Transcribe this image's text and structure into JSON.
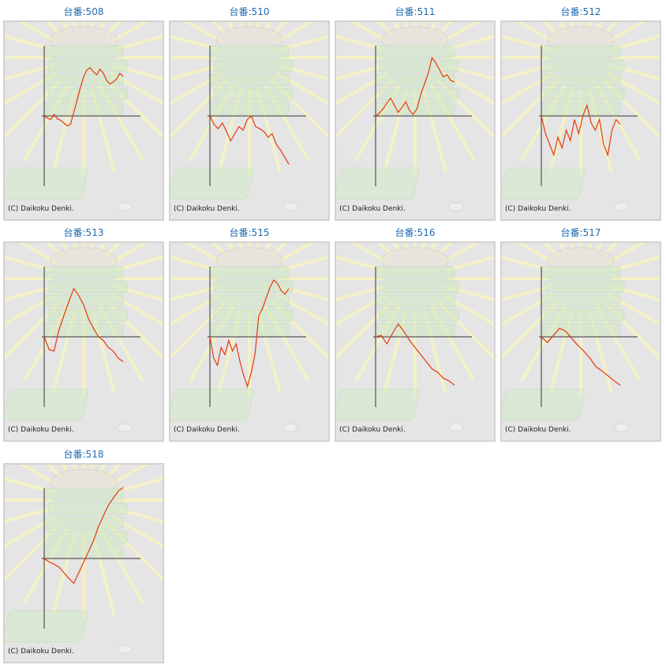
{
  "title_prefix": "台番:",
  "copyright": "(C) Daikoku Denki.",
  "colors": {
    "title": "#1f6bb0",
    "line": "#e8380d",
    "axis": "#333333",
    "panel": "#e5e5e5",
    "border": "#d2d2d2"
  },
  "charts": [
    {
      "title": "台番:508"
    },
    {
      "title": "台番:510"
    },
    {
      "title": "台番:511"
    },
    {
      "title": "台番:512"
    },
    {
      "title": "台番:513"
    },
    {
      "title": "台番:515"
    },
    {
      "title": "台番:516"
    },
    {
      "title": "台番:517"
    },
    {
      "title": "台番:518"
    }
  ],
  "chart_data": [
    {
      "type": "line",
      "title": "台番:508",
      "series": [
        {
          "values": [
            0,
            -3,
            -5,
            2,
            -4,
            -6,
            -10,
            -14,
            -12,
            5,
            22,
            40,
            55,
            65,
            68,
            62,
            58,
            66,
            60,
            50,
            45,
            48,
            52,
            60,
            56
          ]
        }
      ]
    },
    {
      "type": "line",
      "title": "台番:510",
      "series": [
        {
          "values": [
            0,
            -12,
            -18,
            -10,
            -22,
            -35,
            -25,
            -15,
            -20,
            -5,
            0,
            -15,
            -18,
            -22,
            -30,
            -25,
            -40,
            -48,
            -58,
            -68
          ]
        }
      ]
    },
    {
      "type": "line",
      "title": "台番:511",
      "series": [
        {
          "values": [
            0,
            4,
            10,
            18,
            25,
            15,
            5,
            12,
            20,
            8,
            2,
            10,
            30,
            45,
            60,
            82,
            75,
            65,
            55,
            58,
            50,
            48
          ]
        }
      ]
    },
    {
      "type": "line",
      "title": "台番:512",
      "series": [
        {
          "values": [
            0,
            -25,
            -40,
            -55,
            -30,
            -45,
            -20,
            -35,
            -5,
            -25,
            0,
            15,
            -10,
            -20,
            -5,
            -40,
            -55,
            -20,
            -5,
            -12
          ]
        }
      ]
    },
    {
      "type": "line",
      "title": "台番:513",
      "series": [
        {
          "values": [
            0,
            -18,
            -20,
            10,
            30,
            50,
            68,
            58,
            45,
            25,
            12,
            0,
            -5,
            -15,
            -20,
            -30,
            -35
          ]
        }
      ]
    },
    {
      "type": "line",
      "title": "台番:515",
      "series": [
        {
          "values": [
            0,
            -30,
            -40,
            -15,
            -25,
            -5,
            -20,
            -10,
            -35,
            -55,
            -70,
            -50,
            -25,
            30,
            40,
            55,
            70,
            80,
            75,
            65,
            60,
            68
          ]
        }
      ]
    },
    {
      "type": "line",
      "title": "台番:516",
      "series": [
        {
          "values": [
            0,
            2,
            -10,
            5,
            18,
            8,
            -5,
            -15,
            -25,
            -35,
            -45,
            -50,
            -58,
            -62,
            -68
          ]
        }
      ]
    },
    {
      "type": "line",
      "title": "台番:517",
      "series": [
        {
          "values": [
            0,
            -8,
            2,
            12,
            8,
            -2,
            -12,
            -20,
            -30,
            -42,
            -48,
            -55,
            -62,
            -68
          ]
        }
      ]
    },
    {
      "type": "line",
      "title": "台番:518",
      "series": [
        {
          "values": [
            0,
            -5,
            -8,
            -12,
            -20,
            -28,
            -35,
            -20,
            -5,
            10,
            25,
            45,
            60,
            75,
            85,
            95,
            100
          ]
        }
      ]
    }
  ]
}
